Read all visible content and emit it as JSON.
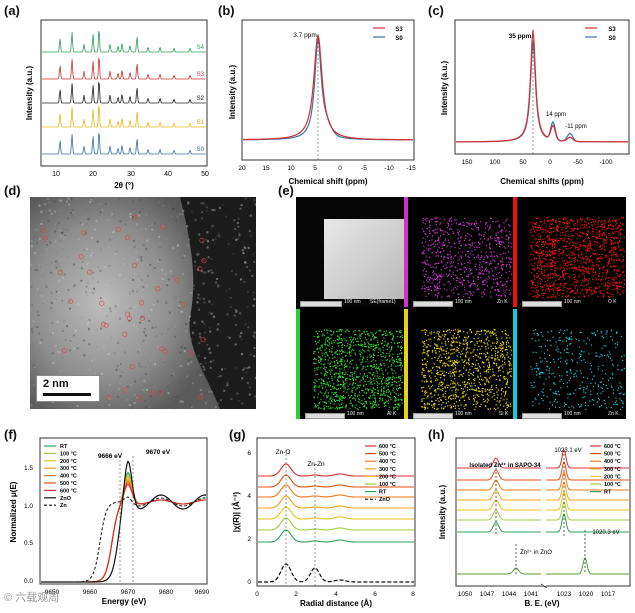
{
  "figure": {
    "labels": [
      "(a)",
      "(b)",
      "(c)",
      "(d)",
      "(e)",
      "(f)",
      "(g)",
      "(h)"
    ],
    "watermark": "© 六载观周"
  },
  "colors": {
    "S0": "#3c6fa8",
    "S1": "#e8b71a",
    "S2": "#222222",
    "S3": "#d43030",
    "S4": "#2ea05a",
    "map_zn_small": "#cc33cc",
    "map_o": "#ee1111",
    "map_al": "#33cc33",
    "map_si": "#e6d210",
    "map_zn": "#18c8d8"
  },
  "panel_a": {
    "title": "(a)",
    "xlabel": "2θ (°)",
    "ylabel": "Intensity (a.u.)",
    "xticks": [
      "10",
      "20",
      "30",
      "40",
      "50"
    ],
    "series_labels": [
      "S4",
      "S3",
      "S2",
      "S1",
      "S0"
    ]
  },
  "panel_b": {
    "title": "(b)",
    "xlabel": "Chemical shift (ppm)",
    "ylabel": "Intensity (a.u.)",
    "xticks": [
      "20",
      "15",
      "10",
      "5",
      "0",
      "-5",
      "-10",
      "-15"
    ],
    "annotation": "3.7 ppm",
    "legend": [
      "S3",
      "S0"
    ]
  },
  "panel_c": {
    "title": "(c)",
    "xlabel": "Chemical shifts (ppm)",
    "ylabel": "Intensity (a.u.)",
    "xticks": [
      "150",
      "100",
      "50",
      "0",
      "-50",
      "-100"
    ],
    "annotations": [
      "35 ppm",
      "14 ppm",
      "-11 ppm"
    ],
    "legend": [
      "S3",
      "S0"
    ]
  },
  "panel_d": {
    "title": "(d)",
    "scalebar": "2 nm"
  },
  "panel_e": {
    "title": "(e)",
    "maps": [
      {
        "label": "SE(frame1)",
        "scale": "100 nm"
      },
      {
        "label": "Zn K",
        "scale": "100 nm"
      },
      {
        "label": "O K",
        "scale": "100 nm"
      },
      {
        "label": "Al K",
        "scale": "100 nm"
      },
      {
        "label": "Si K",
        "scale": "100 nm"
      },
      {
        "label": "Zn K",
        "scale": "100 nm"
      }
    ]
  },
  "panel_f": {
    "title": "(f)",
    "xlabel": "Energy (eV)",
    "ylabel": "Normalized μ(E)",
    "xticks": [
      "9650",
      "9660",
      "9670",
      "9680",
      "9690"
    ],
    "yticks": [
      "0.0",
      "0.5",
      "1.0",
      "1.5"
    ],
    "annotations": [
      "9666 eV",
      "9670 eV"
    ],
    "legend": [
      "RT",
      "100 °C",
      "200 °C",
      "300 °C",
      "400 °C",
      "500 °C",
      "600 °C",
      "ZnO",
      "Zn"
    ]
  },
  "panel_g": {
    "title": "(g)",
    "xlabel": "Radial distance (Å)",
    "ylabel": "|χ(R)| (Å⁻³)",
    "xticks": [
      "0",
      "2",
      "4",
      "6",
      "8"
    ],
    "yticks": [
      "0",
      "2",
      "4",
      "6"
    ],
    "annotations": [
      "Zn-O",
      "Zn-Zn"
    ],
    "legend": [
      "600 °C",
      "500 °C",
      "400 °C",
      "300 °C",
      "200 °C",
      "100 °C",
      "RT",
      "ZnO"
    ]
  },
  "panel_h": {
    "title": "(h)",
    "xlabel": "B. E. (eV)",
    "ylabel": "Intensity (a.u.)",
    "xticks": [
      "1050",
      "1047",
      "1044",
      "1041",
      "1023",
      "1020",
      "1017"
    ],
    "annotations": [
      "1023.1 eV",
      "Isolated Zn²⁺ in SAPO-34",
      "1020.3 eV",
      "Zn²⁺ in ZnO"
    ],
    "legend": [
      "600 °C",
      "500 °C",
      "400 °C",
      "300 °C",
      "200 °C",
      "100 °C",
      "RT"
    ]
  }
}
